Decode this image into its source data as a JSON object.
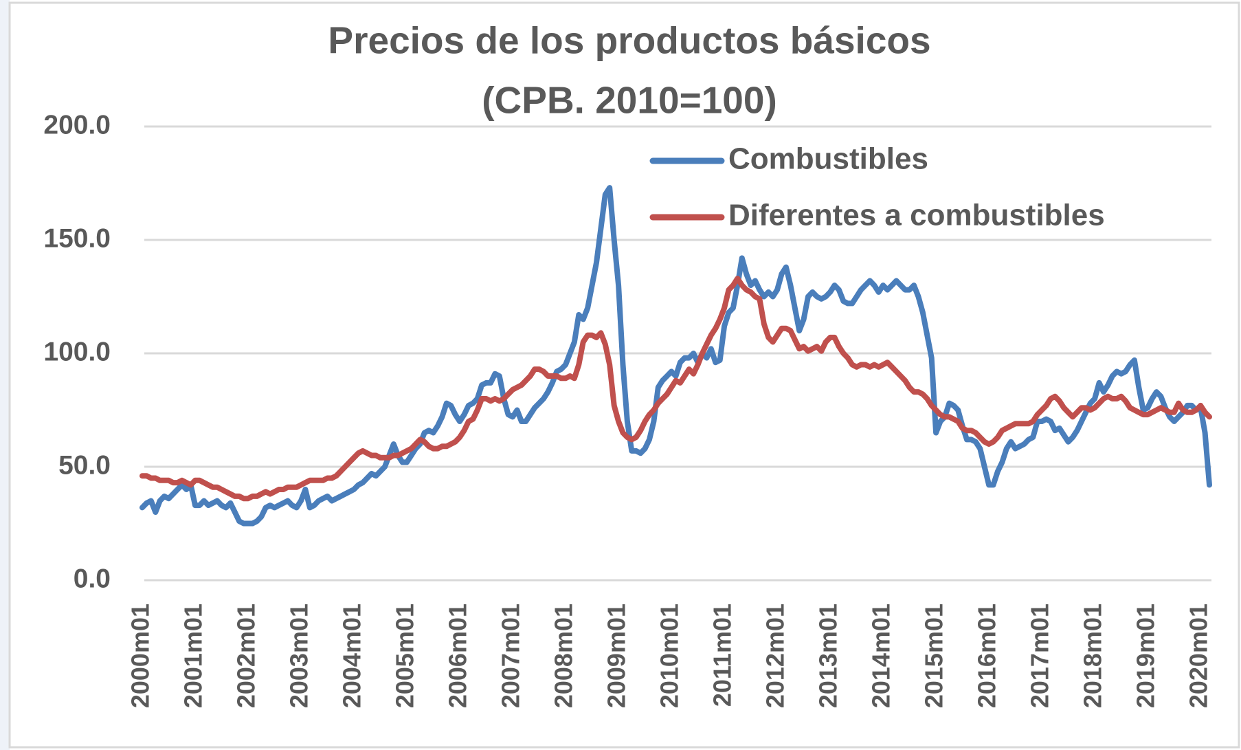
{
  "chart_data": {
    "type": "line",
    "title": "Precios de los productos básicos",
    "subtitle": "(CPB. 2010=100)",
    "categories": [
      "2000m01",
      null,
      null,
      null,
      null,
      null,
      null,
      null,
      null,
      null,
      null,
      null,
      "2001m01",
      null,
      null,
      null,
      null,
      null,
      null,
      null,
      null,
      null,
      null,
      null,
      "2002m01",
      null,
      null,
      null,
      null,
      null,
      null,
      null,
      null,
      null,
      null,
      null,
      "2003m01",
      null,
      null,
      null,
      null,
      null,
      null,
      null,
      null,
      null,
      null,
      null,
      "2004m01",
      null,
      null,
      null,
      null,
      null,
      null,
      null,
      null,
      null,
      null,
      null,
      "2005m01",
      null,
      null,
      null,
      null,
      null,
      null,
      null,
      null,
      null,
      null,
      null,
      "2006m01",
      null,
      null,
      null,
      null,
      null,
      null,
      null,
      null,
      null,
      null,
      null,
      "2007m01",
      null,
      null,
      null,
      null,
      null,
      null,
      null,
      null,
      null,
      null,
      null,
      "2008m01",
      null,
      null,
      null,
      null,
      null,
      null,
      null,
      null,
      null,
      null,
      null,
      "2009m01",
      null,
      null,
      null,
      null,
      null,
      null,
      null,
      null,
      null,
      null,
      null,
      "2010m01",
      null,
      null,
      null,
      null,
      null,
      null,
      null,
      null,
      null,
      null,
      null,
      "2011m01",
      null,
      null,
      null,
      null,
      null,
      null,
      null,
      null,
      null,
      null,
      null,
      "2012m01",
      null,
      null,
      null,
      null,
      null,
      null,
      null,
      null,
      null,
      null,
      null,
      "2013m01",
      null,
      null,
      null,
      null,
      null,
      null,
      null,
      null,
      null,
      null,
      null,
      "2014m01",
      null,
      null,
      null,
      null,
      null,
      null,
      null,
      null,
      null,
      null,
      null,
      "2015m01",
      null,
      null,
      null,
      null,
      null,
      null,
      null,
      null,
      null,
      null,
      null,
      "2016m01",
      null,
      null,
      null,
      null,
      null,
      null,
      null,
      null,
      null,
      null,
      null,
      "2017m01",
      null,
      null,
      null,
      null,
      null,
      null,
      null,
      null,
      null,
      null,
      null,
      "2018m01",
      null,
      null,
      null,
      null,
      null,
      null,
      null,
      null,
      null,
      null,
      null,
      "2019m01",
      null,
      null,
      null,
      null,
      null,
      null,
      null,
      null,
      null,
      null,
      null,
      "2020m01",
      null,
      null
    ],
    "series": [
      {
        "name": "Combustibles",
        "color": "#4a7ebb",
        "values": [
          32,
          34,
          35,
          30,
          35,
          37,
          36,
          38,
          40,
          42,
          40,
          42,
          33,
          33,
          35,
          33,
          34,
          35,
          33,
          32,
          34,
          30,
          26,
          25,
          25,
          25,
          26,
          28,
          32,
          33,
          32,
          33,
          34,
          35,
          33,
          32,
          35,
          40,
          32,
          33,
          35,
          36,
          37,
          35,
          36,
          37,
          38,
          39,
          40,
          42,
          43,
          45,
          47,
          46,
          48,
          50,
          55,
          60,
          55,
          52,
          52,
          55,
          58,
          60,
          65,
          66,
          65,
          68,
          72,
          78,
          77,
          73,
          70,
          73,
          77,
          78,
          80,
          86,
          87,
          87,
          91,
          90,
          80,
          73,
          72,
          75,
          70,
          70,
          73,
          76,
          78,
          80,
          83,
          87,
          92,
          93,
          95,
          100,
          105,
          117,
          115,
          120,
          130,
          140,
          155,
          170,
          173,
          150,
          130,
          95,
          70,
          57,
          57,
          56,
          58,
          62,
          70,
          85,
          88,
          90,
          92,
          90,
          96,
          98,
          98,
          100,
          96,
          100,
          98,
          102,
          96,
          97,
          112,
          118,
          120,
          130,
          142,
          135,
          130,
          132,
          128,
          125,
          127,
          125,
          128,
          135,
          138,
          130,
          120,
          110,
          115,
          125,
          127,
          125,
          124,
          125,
          127,
          130,
          128,
          123,
          122,
          122,
          125,
          128,
          130,
          132,
          130,
          127,
          130,
          128,
          130,
          132,
          130,
          128,
          128,
          130,
          125,
          118,
          108,
          98,
          65,
          70,
          72,
          78,
          77,
          75,
          68,
          62,
          62,
          61,
          58,
          50,
          42,
          42,
          48,
          52,
          58,
          61,
          58,
          59,
          60,
          62,
          63,
          70,
          70,
          71,
          70,
          66,
          67,
          64,
          61,
          63,
          66,
          70,
          74,
          78,
          80,
          87,
          83,
          86,
          90,
          92,
          91,
          92,
          95,
          97,
          85,
          75,
          76,
          80,
          83,
          81,
          76,
          72,
          70,
          72,
          74,
          77,
          77,
          75,
          76,
          65,
          42
        ]
      },
      {
        "name": "Diferentes a combustibles",
        "color": "#c0504d",
        "values": [
          46,
          46,
          45,
          45,
          44,
          44,
          44,
          43,
          43,
          44,
          43,
          42,
          44,
          44,
          43,
          42,
          41,
          41,
          40,
          39,
          38,
          37,
          37,
          36,
          36,
          37,
          37,
          38,
          39,
          38,
          39,
          40,
          40,
          41,
          41,
          41,
          42,
          43,
          44,
          44,
          44,
          44,
          45,
          45,
          46,
          48,
          50,
          52,
          54,
          56,
          57,
          56,
          55,
          55,
          54,
          54,
          54,
          55,
          55,
          56,
          57,
          58,
          60,
          62,
          61,
          59,
          58,
          58,
          59,
          59,
          60,
          61,
          63,
          66,
          70,
          71,
          75,
          80,
          80,
          79,
          80,
          79,
          80,
          82,
          84,
          85,
          86,
          88,
          90,
          93,
          93,
          92,
          90,
          90,
          90,
          89,
          89,
          90,
          89,
          95,
          105,
          108,
          108,
          107,
          109,
          104,
          95,
          77,
          70,
          65,
          63,
          62,
          63,
          66,
          70,
          73,
          75,
          78,
          80,
          82,
          85,
          88,
          87,
          90,
          93,
          91,
          95,
          100,
          104,
          108,
          111,
          115,
          120,
          128,
          130,
          133,
          130,
          128,
          127,
          125,
          124,
          113,
          107,
          105,
          108,
          111,
          111,
          110,
          106,
          102,
          103,
          101,
          102,
          103,
          101,
          105,
          107,
          107,
          103,
          100,
          98,
          95,
          94,
          95,
          95,
          94,
          95,
          94,
          95,
          96,
          94,
          92,
          90,
          88,
          85,
          83,
          83,
          82,
          80,
          77,
          75,
          73,
          72,
          72,
          71,
          70,
          67,
          66,
          66,
          65,
          63,
          61,
          60,
          61,
          63,
          66,
          67,
          68,
          69,
          69,
          69,
          69,
          70,
          73,
          75,
          77,
          80,
          81,
          79,
          76,
          74,
          72,
          74,
          76,
          76,
          75,
          76,
          78,
          80,
          81,
          80,
          80,
          81,
          79,
          76,
          75,
          74,
          73,
          73,
          74,
          75,
          76,
          75,
          74,
          74,
          78,
          75,
          74,
          74,
          75,
          77,
          74,
          72
        ]
      }
    ],
    "ylim": [
      0,
      200
    ],
    "yticks": [
      {
        "value": 0,
        "label": "0.0"
      },
      {
        "value": 50,
        "label": "50.0"
      },
      {
        "value": 100,
        "label": "100.0"
      },
      {
        "value": 150,
        "label": "150.0"
      },
      {
        "value": 200,
        "label": "200.0"
      }
    ],
    "grid": true,
    "legend": "upper right"
  }
}
